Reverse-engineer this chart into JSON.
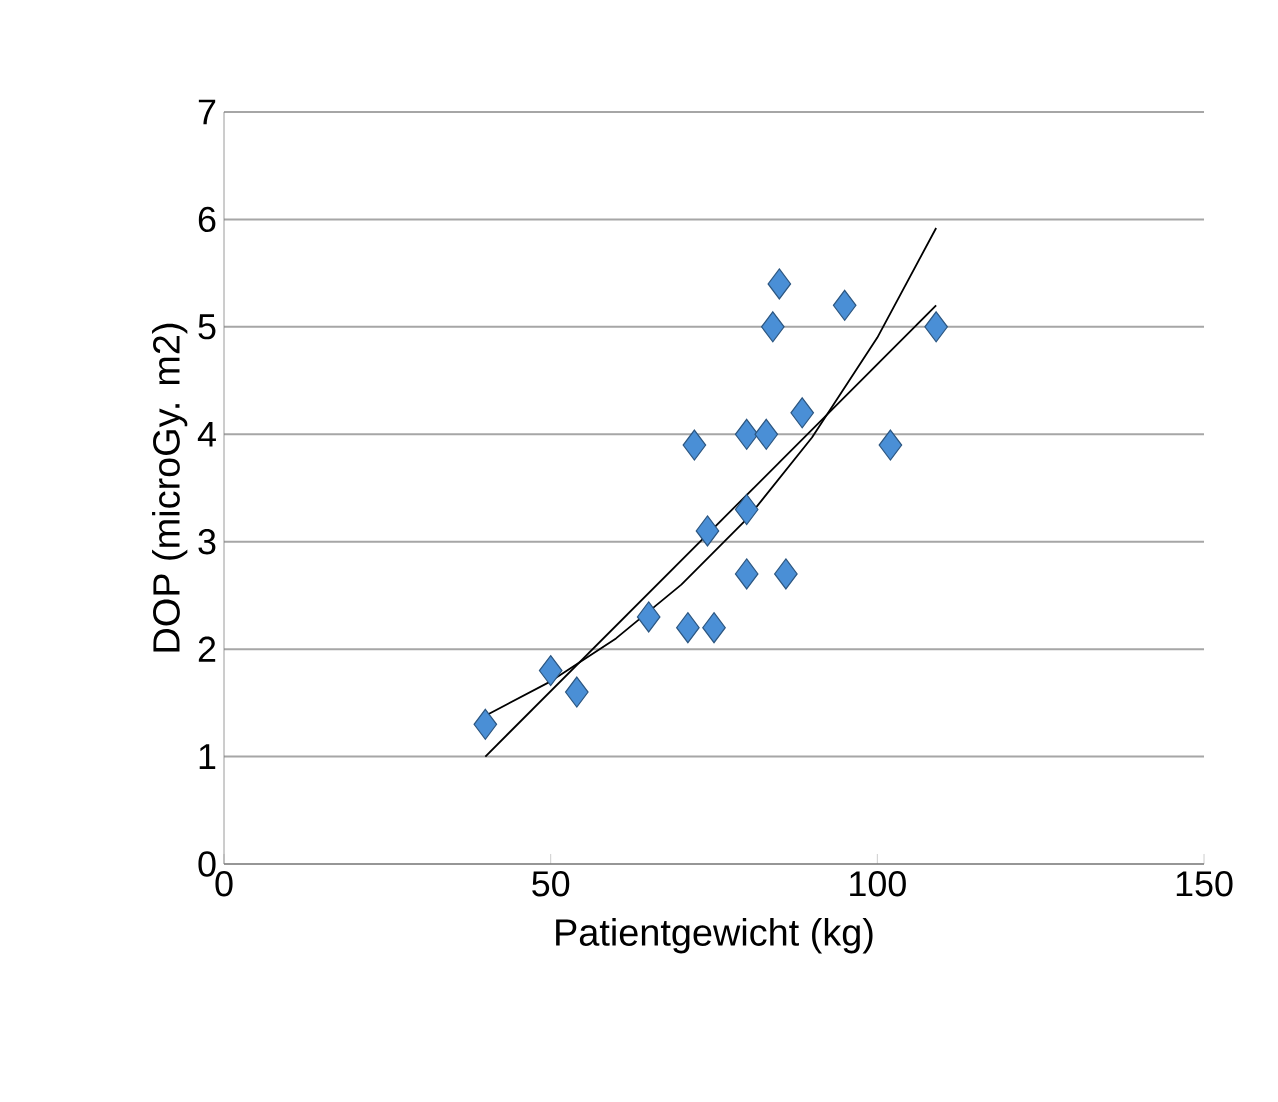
{
  "chart_data": {
    "type": "scatter",
    "xlabel": "Patientgewicht (kg)",
    "ylabel": "DOP (microGy. m2)",
    "xlim": [
      0,
      150
    ],
    "ylim": [
      0,
      7
    ],
    "xticks": [
      0,
      50,
      100,
      150
    ],
    "yticks": [
      0,
      1,
      2,
      3,
      4,
      5,
      6,
      7
    ],
    "grid": "y",
    "series": [
      {
        "marker": "diamond",
        "color": "#4a8fd6",
        "x": [
          40,
          50,
          54,
          65,
          71,
          75,
          80,
          86,
          74,
          80,
          72,
          80,
          83,
          88.5,
          102,
          84,
          85,
          95,
          109
        ],
        "values": [
          1.3,
          1.8,
          1.6,
          2.3,
          2.2,
          2.2,
          2.7,
          2.7,
          3.1,
          3.3,
          3.9,
          4.0,
          4.0,
          4.2,
          3.9,
          5.0,
          5.4,
          5.2,
          5.0
        ]
      },
      {
        "type": "line",
        "marker": "none",
        "line_style": "solid",
        "color": "#000000",
        "x": [
          40,
          109
        ],
        "values": [
          1.0,
          5.2
        ]
      },
      {
        "type": "line",
        "marker": "none",
        "line_style": "solid",
        "color": "#000000",
        "x": [
          40,
          50,
          60,
          70,
          80,
          90,
          100,
          109
        ],
        "values": [
          1.38,
          1.7,
          2.1,
          2.6,
          3.21,
          3.97,
          4.9,
          5.92
        ]
      }
    ]
  }
}
